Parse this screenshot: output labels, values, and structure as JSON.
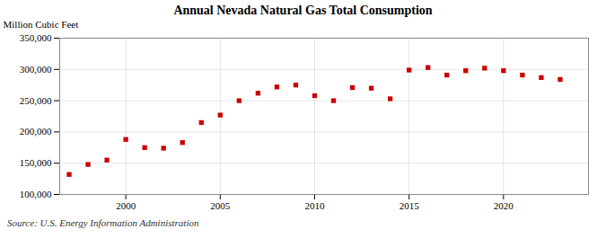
{
  "chart_data": {
    "type": "scatter",
    "title": "Annual Nevada Natural Gas Total Consumption",
    "ylabel": "Million Cubic Feet",
    "source": "Source: U.S. Energy Information Administration",
    "x": [
      1997,
      1998,
      1999,
      2000,
      2001,
      2002,
      2003,
      2004,
      2005,
      2006,
      2007,
      2008,
      2009,
      2010,
      2011,
      2012,
      2013,
      2014,
      2015,
      2016,
      2017,
      2018,
      2019,
      2020,
      2021,
      2022,
      2023
    ],
    "values": [
      132000,
      148000,
      155000,
      188000,
      175000,
      174000,
      183000,
      215000,
      227000,
      250000,
      262000,
      272000,
      275000,
      258000,
      250000,
      271000,
      270000,
      253000,
      299000,
      303000,
      291000,
      298000,
      302000,
      298000,
      291000,
      287000,
      284000
    ],
    "color": "#cc0000",
    "marker": "square",
    "xlim": [
      1996.5,
      2024.5
    ],
    "xticks": [
      2000,
      2005,
      2010,
      2015,
      2020
    ],
    "ylim": [
      100000,
      350000
    ],
    "yticks": [
      {
        "value": 100000,
        "label": "100,000"
      },
      {
        "value": 150000,
        "label": "150,000"
      },
      {
        "value": 200000,
        "label": "200,000"
      },
      {
        "value": 250000,
        "label": "250,000"
      },
      {
        "value": 300000,
        "label": "300,000"
      },
      {
        "value": 350000,
        "label": "350,000"
      }
    ],
    "grid": true
  }
}
